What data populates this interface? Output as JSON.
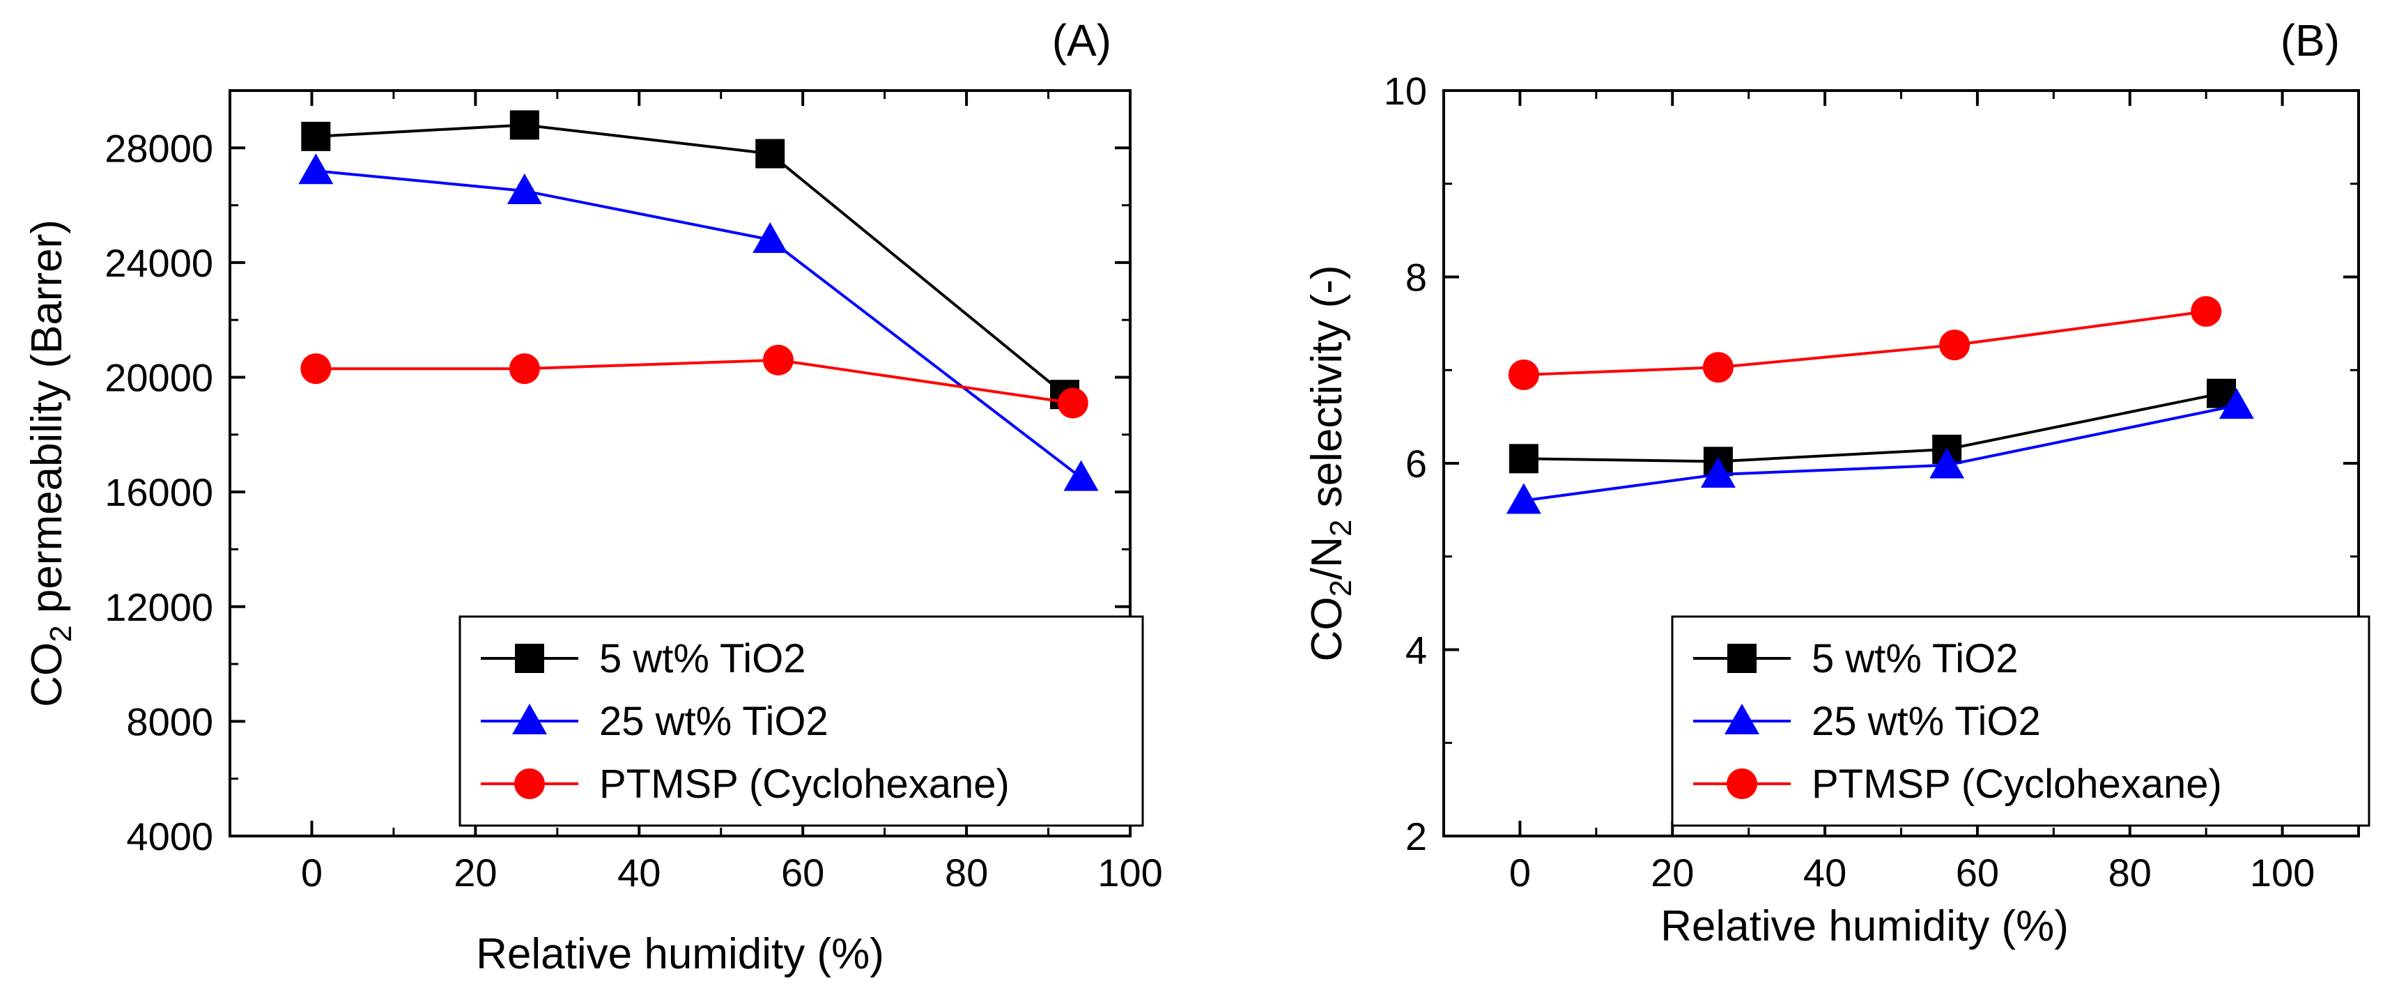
{
  "chart_data": [
    {
      "type": "line",
      "panel_label": "(A)",
      "xlabel": "Relative humidity (%)",
      "ylabel": {
        "prefix": "CO",
        "sub": "2",
        "suffix": " permeability (Barrer)"
      },
      "xlim": [
        -10,
        100
      ],
      "ylim": [
        4000,
        30000
      ],
      "xticks": [
        0,
        20,
        40,
        60,
        80,
        100
      ],
      "yticks": [
        4000,
        8000,
        12000,
        16000,
        20000,
        24000,
        28000
      ],
      "grid": false,
      "legend_position": "bottom-right",
      "series": [
        {
          "name": "5 wt% TiO2",
          "color": "#000000",
          "marker": "square",
          "x": [
            0.5,
            26,
            56,
            92
          ],
          "y": [
            28400,
            28800,
            27800,
            19400
          ]
        },
        {
          "name": "25 wt% TiO2",
          "color": "#0000ff",
          "marker": "triangle",
          "x": [
            0.5,
            26,
            56,
            94
          ],
          "y": [
            27200,
            26500,
            24800,
            16500
          ]
        },
        {
          "name": "PTMSP (Cyclohexane)",
          "color": "#ff0000",
          "marker": "circle",
          "x": [
            0.5,
            26,
            57,
            93
          ],
          "y": [
            20300,
            20300,
            20600,
            19100
          ]
        }
      ]
    },
    {
      "type": "line",
      "panel_label": "(B)",
      "xlabel": "Relative humidity (%)",
      "ylabel": {
        "prefix": "CO",
        "sub": "2",
        "mid": "/N",
        "sub2": "2",
        "suffix": " selectivity (-)"
      },
      "xlim": [
        -10,
        110
      ],
      "ylim": [
        2,
        10
      ],
      "xticks": [
        0,
        20,
        40,
        60,
        80,
        100
      ],
      "yticks": [
        2,
        4,
        6,
        8,
        10
      ],
      "grid": false,
      "legend_position": "bottom-right",
      "series": [
        {
          "name": "5 wt% TiO2",
          "color": "#000000",
          "marker": "square",
          "x": [
            0.5,
            26,
            56,
            92
          ],
          "y": [
            6.05,
            6.02,
            6.15,
            6.75
          ]
        },
        {
          "name": "25 wt% TiO2",
          "color": "#0000ff",
          "marker": "triangle",
          "x": [
            0.5,
            26,
            56,
            94
          ],
          "y": [
            5.6,
            5.88,
            5.98,
            6.62
          ]
        },
        {
          "name": "PTMSP (Cyclohexane)",
          "color": "#ff0000",
          "marker": "circle",
          "x": [
            0.5,
            26,
            57,
            90
          ],
          "y": [
            6.95,
            7.03,
            7.27,
            7.63
          ]
        }
      ]
    }
  ]
}
